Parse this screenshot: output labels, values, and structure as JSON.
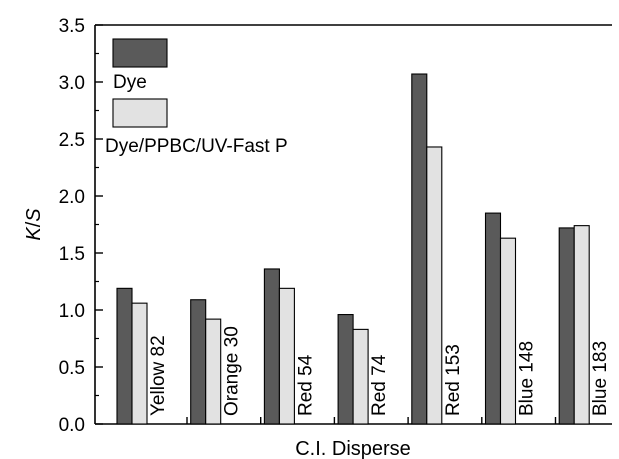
{
  "chart_data": {
    "type": "bar",
    "xlabel": "C.I. Disperse",
    "ylabel": "K/S",
    "ylim": [
      0,
      3.5
    ],
    "yticks": [
      "0.0",
      "0.5",
      "1.0",
      "1.5",
      "2.0",
      "2.5",
      "3.0",
      "3.5"
    ],
    "categories": [
      "Yellow 82",
      "Orange 30",
      "Red 54",
      "Red 74",
      "Red 153",
      "Blue 148",
      "Blue 183"
    ],
    "series": [
      {
        "name": "Dye",
        "values": [
          1.19,
          1.09,
          1.36,
          0.96,
          3.07,
          1.85,
          1.72
        ],
        "color": "#5a5a5a"
      },
      {
        "name": "Dye/PPBC/UV-Fast P",
        "values": [
          1.06,
          0.92,
          1.19,
          0.83,
          2.43,
          1.63,
          1.74
        ],
        "color": "#e2e2e2"
      }
    ],
    "legend_position": "top-left",
    "grid": false
  }
}
